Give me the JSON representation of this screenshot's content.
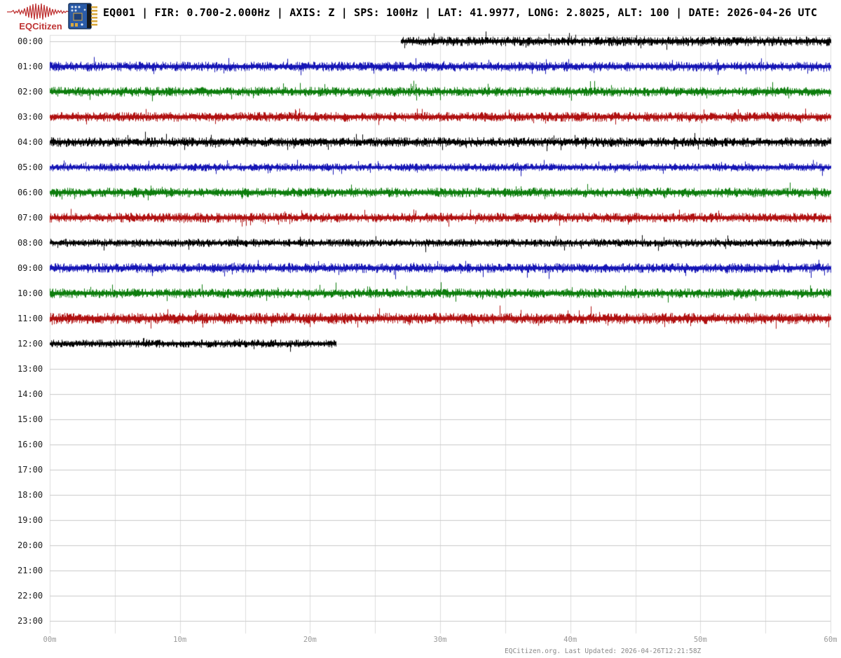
{
  "header": {
    "brand": "EQCitizen",
    "title": "EQ001 | FIR: 0.700-2.000Hz | AXIS: Z | SPS: 100Hz | LAT: 41.9977, LONG: 2.8025, ALT: 100 | DATE: 2026-04-26 UTC"
  },
  "footer": {
    "credit": "EQCitizen.org. Last Updated: 2026-04-26T12:21:58Z"
  },
  "icons": {
    "logo": "eqcitizen-waveform-logo",
    "sensor": "sensor-board-icon"
  },
  "chart_data": {
    "type": "line",
    "subtype": "helicorder-seismogram",
    "title": "EQ001 24-hour helicorder, channel Z",
    "x_axis": {
      "tick_labels": [
        "00m",
        "10m",
        "20m",
        "30m",
        "40m",
        "50m",
        "60m"
      ],
      "range_minutes": [
        0,
        60
      ],
      "major_tick_interval_min": 10,
      "minor_gridline_interval_min": 5,
      "grid": true
    },
    "y_axis": {
      "tick_labels": [
        "00:00",
        "01:00",
        "02:00",
        "03:00",
        "04:00",
        "05:00",
        "06:00",
        "07:00",
        "08:00",
        "09:00",
        "10:00",
        "11:00",
        "12:00",
        "13:00",
        "14:00",
        "15:00",
        "16:00",
        "17:00",
        "18:00",
        "19:00",
        "20:00",
        "21:00",
        "22:00",
        "23:00"
      ]
    },
    "colors": {
      "trace_cycle": [
        "#000000",
        "#1515b5",
        "#0d7d0d",
        "#b01010"
      ],
      "gridline": "#dcdcdc",
      "row_baseline": "#c9c9c9",
      "hour_label": "#1c1c1c",
      "axis_label": "#9a9a9a",
      "credit": "#888888",
      "brand_red": "#bf3434"
    },
    "rows": [
      {
        "hour": "00:00",
        "color": "#000000",
        "data_start_min": 27,
        "data_end_min": 60,
        "amp": 6
      },
      {
        "hour": "01:00",
        "color": "#1515b5",
        "data_start_min": 0,
        "data_end_min": 60,
        "amp": 6
      },
      {
        "hour": "02:00",
        "color": "#0d7d0d",
        "data_start_min": 0,
        "data_end_min": 60,
        "amp": 6
      },
      {
        "hour": "03:00",
        "color": "#b01010",
        "data_start_min": 0,
        "data_end_min": 60,
        "amp": 6
      },
      {
        "hour": "04:00",
        "color": "#000000",
        "data_start_min": 0,
        "data_end_min": 60,
        "amp": 6
      },
      {
        "hour": "05:00",
        "color": "#1515b5",
        "data_start_min": 0,
        "data_end_min": 60,
        "amp": 5
      },
      {
        "hour": "06:00",
        "color": "#0d7d0d",
        "data_start_min": 0,
        "data_end_min": 60,
        "amp": 6
      },
      {
        "hour": "07:00",
        "color": "#b01010",
        "data_start_min": 0,
        "data_end_min": 60,
        "amp": 6
      },
      {
        "hour": "08:00",
        "color": "#000000",
        "data_start_min": 0,
        "data_end_min": 60,
        "amp": 5
      },
      {
        "hour": "09:00",
        "color": "#1515b5",
        "data_start_min": 0,
        "data_end_min": 60,
        "amp": 6
      },
      {
        "hour": "10:00",
        "color": "#0d7d0d",
        "data_start_min": 0,
        "data_end_min": 60,
        "amp": 6
      },
      {
        "hour": "11:00",
        "color": "#b01010",
        "data_start_min": 0,
        "data_end_min": 60,
        "amp": 7
      },
      {
        "hour": "12:00",
        "color": "#000000",
        "data_start_min": 0,
        "data_end_min": 22,
        "amp": 5
      },
      {
        "hour": "13:00",
        "color": null,
        "data_start_min": null,
        "data_end_min": null,
        "amp": 0
      },
      {
        "hour": "14:00",
        "color": null,
        "data_start_min": null,
        "data_end_min": null,
        "amp": 0
      },
      {
        "hour": "15:00",
        "color": null,
        "data_start_min": null,
        "data_end_min": null,
        "amp": 0
      },
      {
        "hour": "16:00",
        "color": null,
        "data_start_min": null,
        "data_end_min": null,
        "amp": 0
      },
      {
        "hour": "17:00",
        "color": null,
        "data_start_min": null,
        "data_end_min": null,
        "amp": 0
      },
      {
        "hour": "18:00",
        "color": null,
        "data_start_min": null,
        "data_end_min": null,
        "amp": 0
      },
      {
        "hour": "19:00",
        "color": null,
        "data_start_min": null,
        "data_end_min": null,
        "amp": 0
      },
      {
        "hour": "20:00",
        "color": null,
        "data_start_min": null,
        "data_end_min": null,
        "amp": 0
      },
      {
        "hour": "21:00",
        "color": null,
        "data_start_min": null,
        "data_end_min": null,
        "amp": 0
      },
      {
        "hour": "22:00",
        "color": null,
        "data_start_min": null,
        "data_end_min": null,
        "amp": 0
      },
      {
        "hour": "23:00",
        "color": null,
        "data_start_min": null,
        "data_end_min": null,
        "amp": 0
      }
    ],
    "legend": null
  }
}
